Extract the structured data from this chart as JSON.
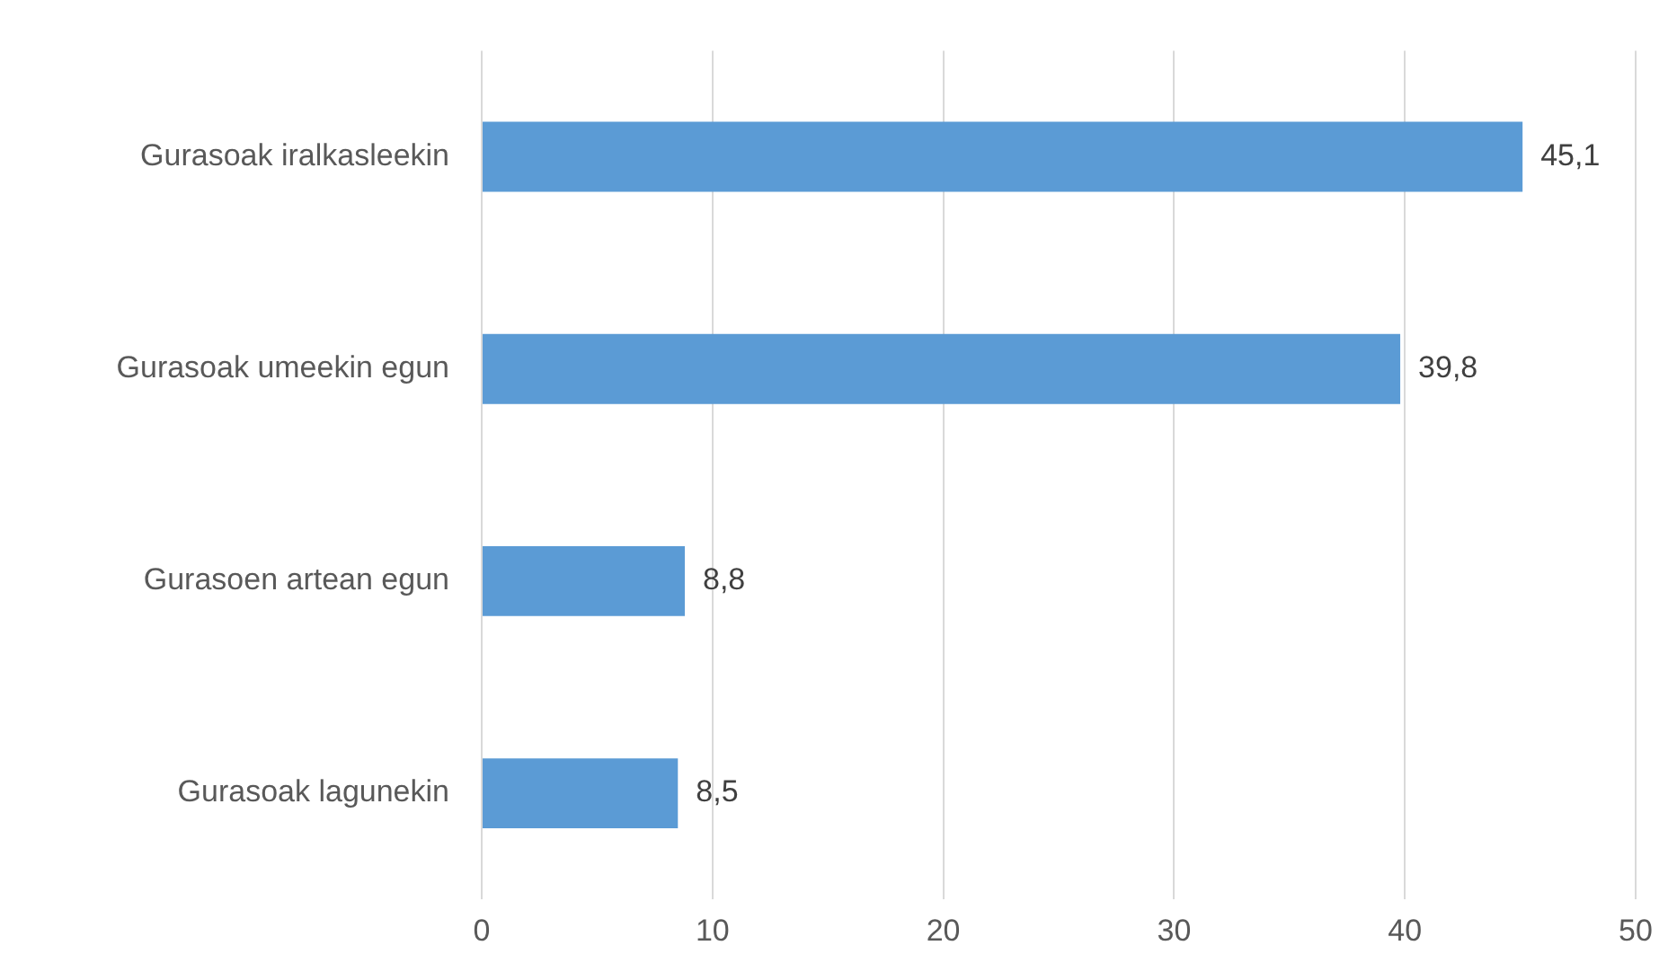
{
  "chart_data": {
    "type": "bar",
    "orientation": "horizontal",
    "categories": [
      "Gurasoak iralkasleekin",
      "Gurasoak umeekin egun",
      "Gurasoen artean egun",
      "Gurasoak lagunekin"
    ],
    "values": [
      45.1,
      39.8,
      8.8,
      8.5
    ],
    "value_labels": [
      "45,1",
      "39,8",
      "8,8",
      "8,5"
    ],
    "color": "#5b9bd5",
    "xlim": [
      0,
      50
    ],
    "xticks": [
      0,
      10,
      20,
      30,
      40,
      50
    ],
    "grid": "x",
    "legend": false
  }
}
